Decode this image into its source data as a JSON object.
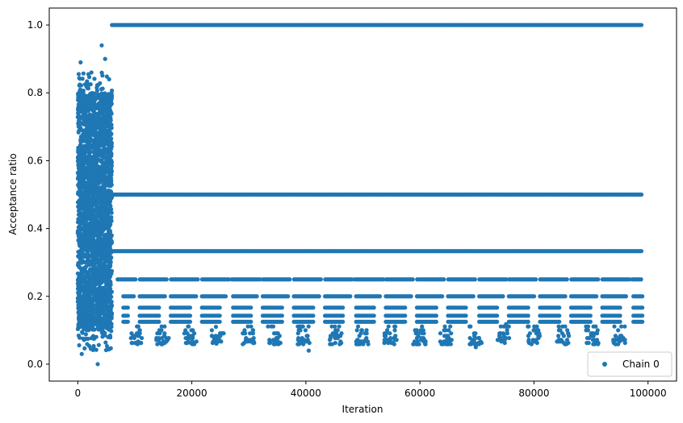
{
  "chart_data": {
    "type": "scatter",
    "xlabel": "Iteration",
    "ylabel": "Acceptance ratio",
    "xlim": [
      -5000,
      105000
    ],
    "ylim": [
      -0.05,
      1.05
    ],
    "x_ticks": [
      0,
      20000,
      40000,
      60000,
      80000,
      100000
    ],
    "x_tick_labels": [
      "0",
      "20000",
      "40000",
      "60000",
      "80000",
      "100000"
    ],
    "y_ticks": [
      0.0,
      0.2,
      0.4,
      0.6,
      0.8,
      1.0
    ],
    "y_tick_labels": [
      "0.0",
      "0.2",
      "0.4",
      "0.6",
      "0.8",
      "1.0"
    ],
    "grid": false,
    "legend": {
      "placement": "lower-right",
      "entries": [
        "Chain 0"
      ]
    },
    "series": [
      {
        "name": "Chain 0",
        "color": "#1f77b4",
        "marker": "circle",
        "bands": [
          {
            "y": 1.0,
            "x_range": [
              6000,
              99000
            ]
          },
          {
            "y": 0.5,
            "x_range": [
              6000,
              99000
            ]
          },
          {
            "y": 0.3333,
            "x_range": [
              6000,
              99000
            ]
          },
          {
            "y": 0.25,
            "x_range": [
              7000,
              99000
            ]
          },
          {
            "y": 0.2,
            "x_range": [
              8000,
              99000
            ]
          },
          {
            "y": 0.1667,
            "x_range": [
              8000,
              99000
            ]
          },
          {
            "y": 0.1429,
            "x_range": [
              8000,
              99000
            ]
          },
          {
            "y": 0.125,
            "x_range": [
              8000,
              99000
            ]
          }
        ],
        "burn_in": {
          "x_range": [
            0,
            6000
          ],
          "y_range": [
            0.0,
            0.95
          ],
          "dense_y_range": [
            0.1,
            0.8
          ]
        },
        "outliers": [
          {
            "x": 500,
            "y": 0.89
          },
          {
            "x": 2400,
            "y": 0.86
          },
          {
            "x": 4200,
            "y": 0.94
          },
          {
            "x": 4800,
            "y": 0.9
          },
          {
            "x": 5500,
            "y": 0.84
          },
          {
            "x": 3500,
            "y": 0.0
          },
          {
            "x": 700,
            "y": 0.03
          },
          {
            "x": 40500,
            "y": 0.04
          },
          {
            "x": 69800,
            "y": 0.05
          }
        ]
      }
    ]
  }
}
